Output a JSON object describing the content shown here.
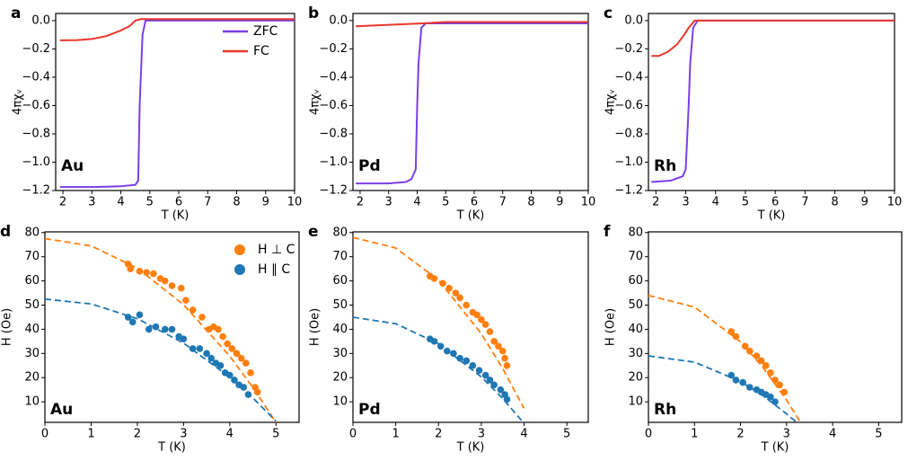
{
  "chart_data": [
    {
      "type": "line",
      "panel_label": "a",
      "annotation": "Au",
      "xlabel": "T (K)",
      "ylabel": "4πχᵥ",
      "xlim": [
        1.75,
        10
      ],
      "xticks": [
        2,
        3,
        4,
        5,
        6,
        7,
        8,
        9,
        10
      ],
      "ylim": [
        -1.2,
        0.05
      ],
      "yticks": [
        {
          "value": -1.2,
          "label": "−1.2"
        },
        {
          "value": -1.0,
          "label": "−1.0"
        },
        {
          "value": -0.8,
          "label": "−0.8"
        },
        {
          "value": -0.6,
          "label": "−0.6"
        },
        {
          "value": -0.4,
          "label": "−0.4"
        },
        {
          "value": -0.2,
          "label": "−0.2"
        },
        {
          "value": 0,
          "label": "0.0"
        }
      ],
      "legend": "upper right",
      "series": [
        {
          "name": "ZFC",
          "color": "#7b3fe4",
          "x": [
            1.9,
            3,
            4,
            4.5,
            4.6,
            4.65,
            4.75,
            4.85,
            10
          ],
          "values": [
            -1.175,
            -1.175,
            -1.17,
            -1.16,
            -1.13,
            -0.6,
            -0.1,
            0,
            0
          ]
        },
        {
          "name": "FC",
          "color": "#e8372c",
          "x": [
            1.9,
            2.5,
            3,
            3.5,
            4,
            4.3,
            4.5,
            4.7,
            10
          ],
          "values": [
            -0.14,
            -0.138,
            -0.13,
            -0.11,
            -0.07,
            -0.04,
            0,
            0.01,
            0.01
          ]
        }
      ]
    },
    {
      "type": "line",
      "panel_label": "b",
      "annotation": "Pd",
      "xlabel": "T (K)",
      "ylabel": "4πχᵥ",
      "xlim": [
        1.75,
        10
      ],
      "xticks": [
        2,
        3,
        4,
        5,
        6,
        7,
        8,
        9,
        10
      ],
      "ylim": [
        -1.2,
        0.05
      ],
      "yticks": [
        {
          "value": -1.2,
          "label": "−1.2"
        },
        {
          "value": -1.0,
          "label": "−1.0"
        },
        {
          "value": -0.8,
          "label": "−0.8"
        },
        {
          "value": -0.6,
          "label": "−0.6"
        },
        {
          "value": -0.4,
          "label": "−0.4"
        },
        {
          "value": -0.2,
          "label": "−0.2"
        },
        {
          "value": 0,
          "label": "0.0"
        }
      ],
      "series": [
        {
          "color": "#7b3fe4",
          "x": [
            1.85,
            3,
            3.6,
            3.8,
            3.95,
            4.0,
            4.05,
            4.15,
            4.3,
            10
          ],
          "values": [
            -1.15,
            -1.15,
            -1.14,
            -1.12,
            -1.05,
            -0.6,
            -0.3,
            -0.05,
            -0.02,
            -0.02
          ]
        },
        {
          "color": "#e8372c",
          "x": [
            1.85,
            3,
            4.2,
            5,
            10
          ],
          "values": [
            -0.04,
            -0.03,
            -0.02,
            -0.01,
            -0.01
          ]
        }
      ]
    },
    {
      "type": "line",
      "panel_label": "c",
      "annotation": "Rh",
      "xlabel": "T (K)",
      "ylabel": "4πχᵥ",
      "xlim": [
        1.75,
        10
      ],
      "xticks": [
        2,
        3,
        4,
        5,
        6,
        7,
        8,
        9,
        10
      ],
      "ylim": [
        -1.2,
        0.05
      ],
      "yticks": [
        {
          "value": -1.2,
          "label": "−1.2"
        },
        {
          "value": -1.0,
          "label": "−1.0"
        },
        {
          "value": -0.8,
          "label": "−0.8"
        },
        {
          "value": -0.6,
          "label": "−0.6"
        },
        {
          "value": -0.4,
          "label": "−0.4"
        },
        {
          "value": -0.2,
          "label": "−0.2"
        },
        {
          "value": 0,
          "label": "0.0"
        }
      ],
      "series": [
        {
          "color": "#7b3fe4",
          "x": [
            1.85,
            2.5,
            2.9,
            3.0,
            3.1,
            3.15,
            3.25,
            3.4,
            10
          ],
          "values": [
            -1.14,
            -1.13,
            -1.1,
            -1.05,
            -0.6,
            -0.3,
            -0.05,
            0,
            0
          ]
        },
        {
          "color": "#e8372c",
          "x": [
            1.85,
            2.1,
            2.4,
            2.7,
            2.95,
            3.1,
            3.3,
            10
          ],
          "values": [
            -0.25,
            -0.25,
            -0.22,
            -0.17,
            -0.1,
            -0.05,
            0,
            0
          ]
        }
      ]
    },
    {
      "type": "scatter",
      "panel_label": "d",
      "annotation": "Au",
      "xlabel": "T (K)",
      "ylabel": "H (Oe)",
      "xlim": [
        0,
        5.5
      ],
      "xticks": [
        0,
        1,
        2,
        3,
        4,
        5
      ],
      "ylim": [
        1.5,
        80.3
      ],
      "yticks": [
        10,
        20,
        30,
        40,
        50,
        60,
        70,
        80
      ],
      "legend": "upper right",
      "series": [
        {
          "name": "H ⊥ C",
          "color": "#ff7f0e",
          "x": [
            1.8,
            1.85,
            2.05,
            2.2,
            2.35,
            2.5,
            2.6,
            2.75,
            2.95,
            3.05,
            3.2,
            3.4,
            3.55,
            3.65,
            3.75,
            3.85,
            3.95,
            4.05,
            4.15,
            4.25,
            4.35,
            4.45,
            4.55,
            4.6
          ],
          "values": [
            67,
            65,
            64,
            63.5,
            63,
            61,
            60,
            58,
            57,
            52,
            48,
            45,
            40,
            41,
            40,
            37,
            34,
            32,
            30,
            28,
            26,
            22,
            16,
            14
          ]
        },
        {
          "name": "H ∥ C",
          "color": "#1f77b4",
          "x": [
            1.8,
            1.9,
            2.05,
            2.25,
            2.4,
            2.6,
            2.75,
            2.9,
            3.0,
            3.2,
            3.35,
            3.5,
            3.6,
            3.7,
            3.8,
            3.9,
            4.0,
            4.1,
            4.2,
            4.3,
            4.4
          ],
          "values": [
            45,
            43,
            46,
            40,
            41,
            40,
            40,
            37,
            36,
            32,
            32,
            30,
            28,
            26,
            25,
            22,
            21,
            19,
            17,
            16,
            13
          ]
        }
      ],
      "curves": [
        {
          "color": "#ff7f0e",
          "x": [
            0,
            1,
            2,
            3,
            4,
            4.5,
            5
          ],
          "values": [
            77.5,
            74.5,
            65.3,
            50.2,
            28.9,
            16.0,
            1.5
          ]
        },
        {
          "color": "#1f77b4",
          "x": [
            0,
            1,
            2,
            3,
            4,
            4.5,
            5
          ],
          "values": [
            52.5,
            50.5,
            44.4,
            34.3,
            20.2,
            11.6,
            2.0
          ]
        }
      ]
    },
    {
      "type": "scatter",
      "panel_label": "e",
      "annotation": "Pd",
      "xlabel": "T (K)",
      "ylabel": "H (Oe)",
      "xlim": [
        0,
        5.5
      ],
      "xticks": [
        0,
        1,
        2,
        3,
        4,
        5
      ],
      "ylim": [
        1.5,
        80.3
      ],
      "yticks": [
        10,
        20,
        30,
        40,
        50,
        60,
        70,
        80
      ],
      "series": [
        {
          "color": "#ff7f0e",
          "x": [
            1.8,
            1.9,
            2.1,
            2.25,
            2.4,
            2.5,
            2.65,
            2.8,
            2.9,
            3.0,
            3.1,
            3.2,
            3.3,
            3.4,
            3.5,
            3.55,
            3.6
          ],
          "values": [
            62,
            61,
            59,
            57,
            55,
            53,
            50,
            47,
            46,
            44,
            42,
            39,
            35,
            33,
            31,
            28,
            25
          ]
        },
        {
          "color": "#1f77b4",
          "x": [
            1.8,
            1.9,
            2.05,
            2.2,
            2.35,
            2.5,
            2.65,
            2.8,
            2.95,
            3.1,
            3.2,
            3.3,
            3.45,
            3.55,
            3.6
          ],
          "values": [
            36,
            35,
            33,
            31,
            30,
            28,
            27,
            25,
            23,
            21,
            19,
            17,
            15,
            13,
            11
          ]
        }
      ],
      "curves": [
        {
          "color": "#ff7f0e",
          "x": [
            0,
            1,
            2,
            3,
            3.5,
            4
          ],
          "values": [
            78,
            73.6,
            60.3,
            38.2,
            23.8,
            7.3
          ]
        },
        {
          "color": "#1f77b4",
          "x": [
            0,
            1,
            2,
            3,
            3.5,
            4
          ],
          "values": [
            45,
            42.3,
            34.0,
            20.3,
            11.4,
            1.1
          ]
        }
      ]
    },
    {
      "type": "scatter",
      "panel_label": "f",
      "annotation": "Rh",
      "xlabel": "T (K)",
      "ylabel": "H (Oe)",
      "xlim": [
        0,
        5.5
      ],
      "xticks": [
        0,
        1,
        2,
        3,
        4,
        5
      ],
      "ylim": [
        1.5,
        80.3
      ],
      "yticks": [
        10,
        20,
        30,
        40,
        50,
        60,
        70,
        80
      ],
      "series": [
        {
          "color": "#ff7f0e",
          "x": [
            1.8,
            1.9,
            2.1,
            2.2,
            2.35,
            2.45,
            2.55,
            2.65,
            2.75,
            2.85,
            2.95
          ],
          "values": [
            39,
            37,
            33,
            31,
            29,
            27,
            25,
            22,
            19,
            17,
            14
          ]
        },
        {
          "color": "#1f77b4",
          "x": [
            1.8,
            1.9,
            2.05,
            2.2,
            2.35,
            2.45,
            2.55,
            2.65,
            2.75
          ],
          "values": [
            21,
            19,
            18,
            16,
            15,
            14,
            13,
            12,
            10
          ]
        }
      ],
      "curves": [
        {
          "color": "#ff7f0e",
          "x": [
            0,
            1,
            2,
            2.5,
            3,
            3.3
          ],
          "values": [
            54,
            49.2,
            34.8,
            23.9,
            10.7,
            1.6
          ]
        },
        {
          "color": "#1f77b4",
          "x": [
            0,
            1,
            2,
            2.5,
            3,
            3.25
          ],
          "values": [
            29,
            26.4,
            18.4,
            12.4,
            5.0,
            1.0
          ]
        }
      ]
    }
  ]
}
